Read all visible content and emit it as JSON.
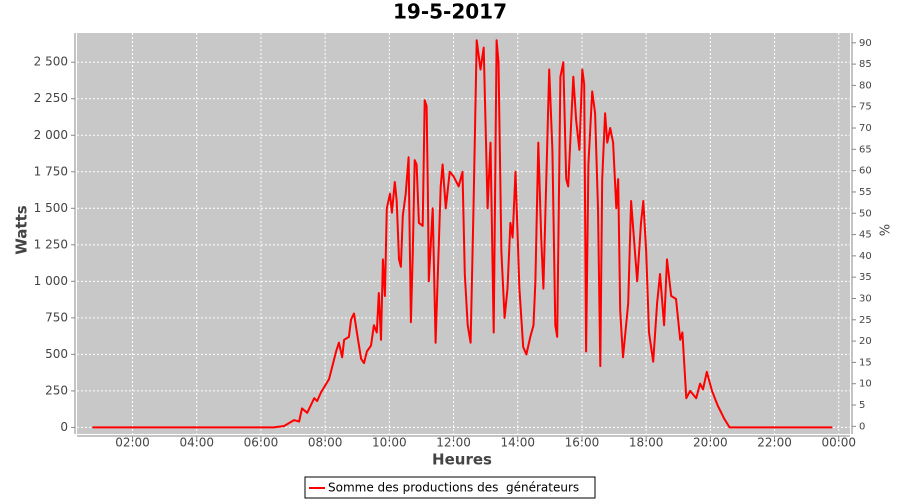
{
  "chart_data": {
    "type": "line",
    "title": "19-5-2017",
    "x_label": "Heures",
    "y_label": "Watts",
    "y2_label": "%",
    "x": [
      0.75,
      6.4,
      6.72,
      7.03,
      7.19,
      7.28,
      7.44,
      7.66,
      7.75,
      7.87,
      8.12,
      8.34,
      8.43,
      8.53,
      8.59,
      8.74,
      8.81,
      8.9,
      8.99,
      9.12,
      9.21,
      9.3,
      9.43,
      9.52,
      9.61,
      9.67,
      9.74,
      9.8,
      9.86,
      9.92,
      10.02,
      10.08,
      10.17,
      10.23,
      10.3,
      10.36,
      10.42,
      10.51,
      10.6,
      10.67,
      10.73,
      10.79,
      10.85,
      10.92,
      11.04,
      11.1,
      11.16,
      11.2,
      11.23,
      11.35,
      11.44,
      11.6,
      11.66,
      11.76,
      11.88,
      12.0,
      12.16,
      12.28,
      12.35,
      12.44,
      12.53,
      12.62,
      12.72,
      12.84,
      12.94,
      13.06,
      13.15,
      13.25,
      13.34,
      13.4,
      13.49,
      13.59,
      13.68,
      13.77,
      13.84,
      13.93,
      14.05,
      14.17,
      14.27,
      14.39,
      14.49,
      14.55,
      14.64,
      14.73,
      14.8,
      14.89,
      14.98,
      15.08,
      15.17,
      15.23,
      15.33,
      15.42,
      15.51,
      15.57,
      15.73,
      15.82,
      15.92,
      16.01,
      16.07,
      16.13,
      16.2,
      16.32,
      16.41,
      16.5,
      16.57,
      16.63,
      16.72,
      16.79,
      16.88,
      16.97,
      17.07,
      17.13,
      17.19,
      17.28,
      17.44,
      17.53,
      17.72,
      17.84,
      17.91,
      18.0,
      18.09,
      18.22,
      18.34,
      18.43,
      18.56,
      18.65,
      18.78,
      18.93,
      19.06,
      19.13,
      19.25,
      19.37,
      19.56,
      19.68,
      19.77,
      19.89,
      20.05,
      20.23,
      20.43,
      20.6,
      23.8
    ],
    "series": [
      {
        "name": "Somme des productions des  générateurs",
        "color": "#ff0000",
        "values": [
          0,
          0,
          10,
          50,
          40,
          130,
          100,
          200,
          180,
          240,
          330,
          520,
          580,
          480,
          600,
          620,
          740,
          780,
          650,
          470,
          440,
          520,
          560,
          700,
          650,
          920,
          600,
          1150,
          900,
          1500,
          1600,
          1470,
          1680,
          1550,
          1150,
          1100,
          1450,
          1600,
          1850,
          720,
          1200,
          1830,
          1800,
          1400,
          1380,
          2240,
          2200,
          1600,
          1000,
          1500,
          580,
          1650,
          1800,
          1500,
          1750,
          1720,
          1650,
          1750,
          1050,
          700,
          580,
          1500,
          2650,
          2450,
          2600,
          1500,
          1950,
          650,
          2650,
          2500,
          1200,
          750,
          950,
          1400,
          1300,
          1750,
          950,
          550,
          500,
          620,
          700,
          1000,
          1950,
          1300,
          950,
          1700,
          2450,
          1900,
          700,
          620,
          2400,
          2500,
          1700,
          1650,
          2400,
          2100,
          1900,
          2450,
          2350,
          520,
          1800,
          2300,
          2150,
          1500,
          420,
          1700,
          2150,
          1950,
          2050,
          1950,
          1500,
          1700,
          800,
          480,
          850,
          1550,
          1000,
          1400,
          1550,
          1200,
          650,
          450,
          850,
          1050,
          700,
          1150,
          900,
          880,
          600,
          650,
          200,
          250,
          200,
          300,
          260,
          380,
          250,
          150,
          60,
          0,
          0
        ]
      }
    ],
    "xlim": [
      0.27,
      24.35
    ],
    "xticks": [
      {
        "value": 2,
        "label": "02:00"
      },
      {
        "value": 4,
        "label": "04:00"
      },
      {
        "value": 6,
        "label": "06:00"
      },
      {
        "value": 8,
        "label": "08:00"
      },
      {
        "value": 10,
        "label": "10:00"
      },
      {
        "value": 12,
        "label": "12:00"
      },
      {
        "value": 14,
        "label": "14:00"
      },
      {
        "value": 16,
        "label": "16:00"
      },
      {
        "value": 18,
        "label": "18:00"
      },
      {
        "value": 20,
        "label": "20:00"
      },
      {
        "value": 22,
        "label": "22:00"
      },
      {
        "value": 24,
        "label": "00:00"
      }
    ],
    "ylim": [
      -45,
      2700
    ],
    "yticks": [
      0,
      250,
      500,
      750,
      {
        "value": 1000,
        "label": "1 000"
      },
      {
        "value": 1250,
        "label": "1 250"
      },
      {
        "value": 1500,
        "label": "1 500"
      },
      {
        "value": 1750,
        "label": "1 750"
      },
      {
        "value": 2000,
        "label": "2 000"
      },
      {
        "value": 2250,
        "label": "2 250"
      },
      {
        "value": 2500,
        "label": "2 500"
      }
    ],
    "y2lim": [
      -1.8,
      92.3
    ],
    "y2ticks": [
      0,
      5,
      10,
      15,
      20,
      25,
      30,
      35,
      40,
      45,
      50,
      55,
      60,
      65,
      70,
      75,
      80,
      85,
      90
    ],
    "grid": true
  }
}
